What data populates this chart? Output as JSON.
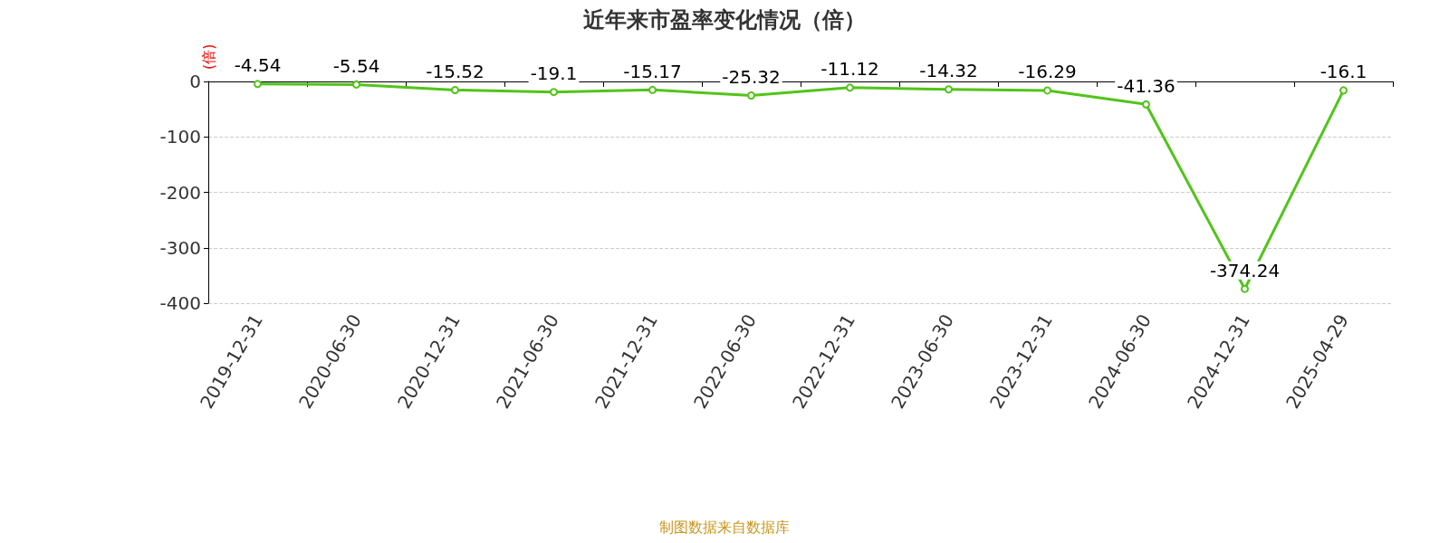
{
  "chart_data": {
    "type": "line",
    "title": "近年来市盈率变化情况（倍）",
    "ylabel": "(倍)",
    "categories": [
      "2019-12-31",
      "2020-06-30",
      "2020-12-31",
      "2021-06-30",
      "2021-12-31",
      "2022-06-30",
      "2022-12-31",
      "2023-06-30",
      "2023-12-31",
      "2024-06-30",
      "2024-12-31",
      "2025-04-29"
    ],
    "series": [
      {
        "color": "#52c41a",
        "values": [
          -4.54,
          -5.54,
          -15.52,
          -19.1,
          -15.17,
          -25.32,
          -11.12,
          -14.32,
          -16.29,
          -41.36,
          -374.24,
          -16.1
        ]
      }
    ],
    "ylim": [
      -400,
      0
    ],
    "yticks": [
      -400,
      -300,
      -200,
      -100,
      0
    ],
    "grid": "y",
    "data_labels": true,
    "marker": "circle",
    "line_style": "solid",
    "annotations": [
      "制图数据来自数据库"
    ]
  }
}
